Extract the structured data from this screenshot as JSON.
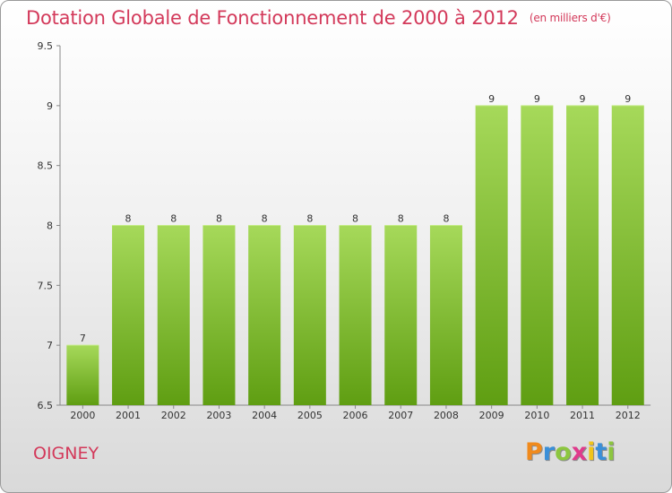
{
  "header": {
    "title": "Dotation Globale de Fonctionnement de 2000 à 2012",
    "subtitle": "(en milliers d'€)"
  },
  "footer": {
    "commune": "OIGNEY",
    "logo": "Proxiti"
  },
  "colors": {
    "title": "#d3395a",
    "bar_light": "#a6d95a",
    "bar_dark": "#5f9e12"
  },
  "chart_data": {
    "type": "bar",
    "title": "Dotation Globale de Fonctionnement de 2000 à 2012",
    "subtitle": "(en milliers d'€)",
    "categories": [
      "2000",
      "2001",
      "2002",
      "2003",
      "2004",
      "2005",
      "2006",
      "2007",
      "2008",
      "2009",
      "2010",
      "2011",
      "2012"
    ],
    "values": [
      7,
      8,
      8,
      8,
      8,
      8,
      8,
      8,
      8,
      9,
      9,
      9,
      9
    ],
    "value_labels": [
      "7",
      "8",
      "8",
      "8",
      "8",
      "8",
      "8",
      "8",
      "8",
      "9",
      "9",
      "9",
      "9"
    ],
    "yticks": [
      "6.5",
      "7",
      "7.5",
      "8",
      "8.5",
      "9",
      "9.5"
    ],
    "ylim": [
      6.5,
      9.5
    ],
    "grid": false,
    "legend": "none"
  }
}
